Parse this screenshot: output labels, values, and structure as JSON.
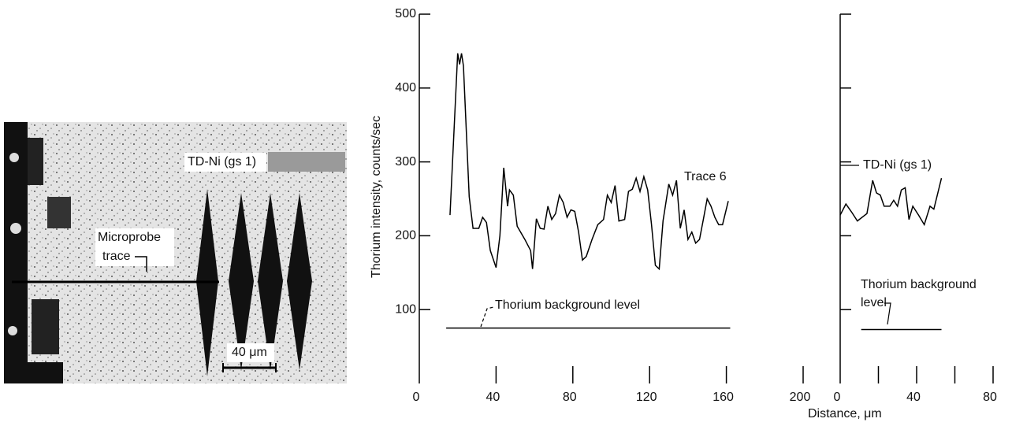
{
  "micrograph": {
    "material_label": "TD-Ni (gs 1)",
    "trace_label": [
      "Microprobe",
      "trace"
    ],
    "scale_label": "40 μm"
  },
  "chart_data": [
    {
      "type": "line",
      "ylabel": "Thorium intensity, counts/sec",
      "xlim": [
        0,
        200
      ],
      "xticks": [
        0,
        40,
        80,
        120,
        160,
        200
      ],
      "ylim": [
        0,
        500
      ],
      "yticks": [
        100,
        200,
        300,
        400,
        500
      ],
      "series": [
        {
          "name": "Trace 6",
          "color": "#000000",
          "x": [
            16,
            20,
            21,
            22,
            23,
            26,
            28,
            31,
            33,
            35,
            37,
            40,
            42,
            44,
            46,
            47,
            49,
            51,
            55,
            58,
            59,
            61,
            63,
            65,
            67,
            69,
            71,
            73,
            75,
            77,
            79,
            81,
            83,
            85,
            87,
            90,
            93,
            96,
            98,
            100,
            102,
            104,
            107,
            109,
            111,
            113,
            115,
            117,
            119,
            121,
            123,
            125,
            127,
            130,
            132,
            134,
            136,
            138,
            140,
            142,
            144,
            146,
            148,
            150,
            152,
            154,
            156,
            158,
            161
          ],
          "values": [
            228,
            447,
            432,
            447,
            430,
            253,
            210,
            210,
            225,
            218,
            180,
            157,
            200,
            292,
            240,
            262,
            255,
            213,
            195,
            180,
            155,
            223,
            210,
            209,
            240,
            222,
            230,
            255,
            245,
            225,
            235,
            233,
            205,
            167,
            172,
            195,
            215,
            222,
            255,
            245,
            268,
            220,
            222,
            260,
            263,
            278,
            260,
            280,
            262,
            215,
            160,
            155,
            220,
            270,
            255,
            275,
            210,
            235,
            195,
            205,
            190,
            195,
            222,
            250,
            240,
            225,
            215,
            215,
            247
          ]
        }
      ],
      "background_level": 75,
      "background_x": [
        14,
        162
      ],
      "background_label": [
        "Thorium background level"
      ]
    },
    {
      "type": "line",
      "xlabel": "Distance, μm",
      "xlim": [
        0,
        80
      ],
      "xticks": [
        0,
        40,
        80
      ],
      "xminor_ticks": [
        20,
        60
      ],
      "ylim": [
        0,
        500
      ],
      "yticks": [
        100,
        200,
        300,
        400,
        500
      ],
      "series": [
        {
          "name": "TD-Ni (gs 1)",
          "color": "#000000",
          "x": [
            0,
            3,
            6,
            9,
            14,
            17,
            19,
            21,
            23,
            26,
            28,
            30,
            32,
            34,
            36,
            38,
            41,
            44,
            47,
            49,
            53
          ],
          "values": [
            228,
            243,
            232,
            220,
            230,
            275,
            258,
            255,
            240,
            240,
            248,
            240,
            262,
            265,
            222,
            240,
            228,
            215,
            240,
            236,
            278
          ]
        }
      ],
      "background_level": 73,
      "background_x": [
        11,
        53
      ],
      "background_label": [
        "Thorium background",
        "level"
      ]
    }
  ]
}
